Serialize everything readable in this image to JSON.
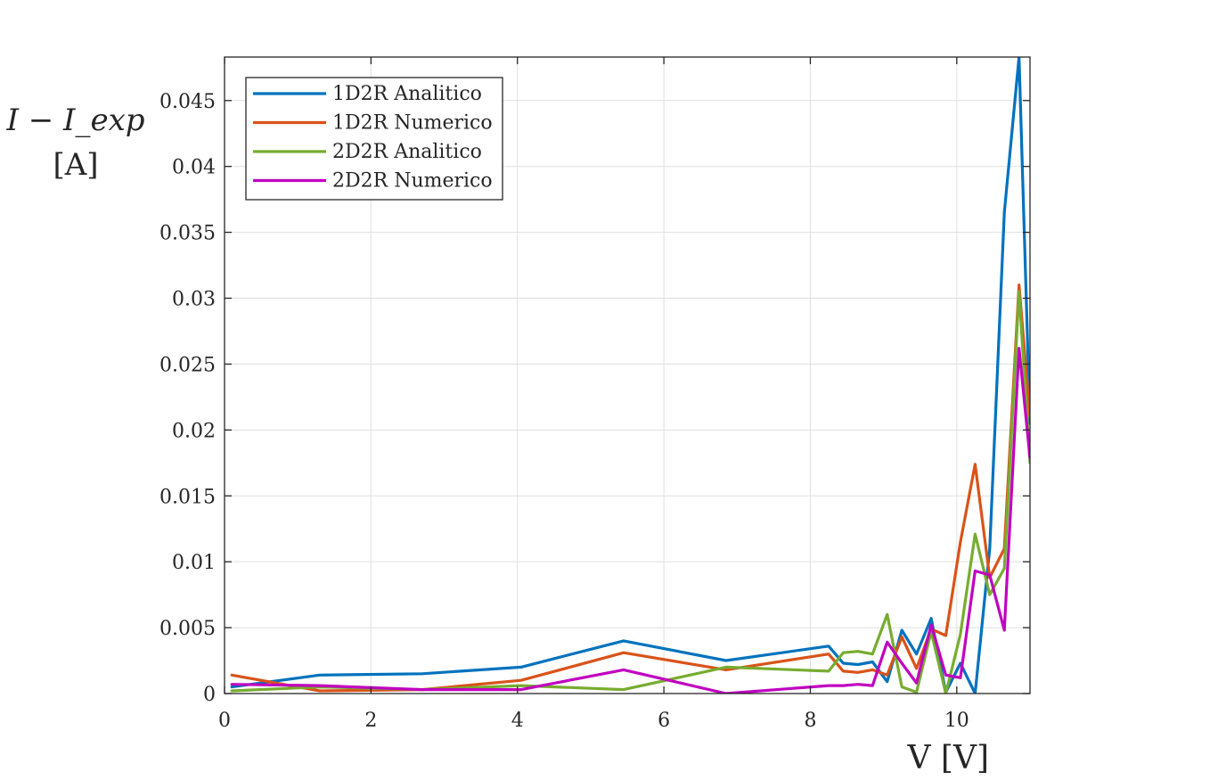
{
  "chart_data": {
    "type": "line",
    "title": "",
    "xlabel": "V [V]",
    "ylabel_line1": "I − I_exp",
    "ylabel_line2": "[A]",
    "xlim": [
      0,
      11
    ],
    "ylim": [
      0,
      0.0483
    ],
    "xticks": [
      0,
      2,
      4,
      6,
      8,
      10
    ],
    "xtick_labels": [
      "0",
      "2",
      "4",
      "6",
      "8",
      "10"
    ],
    "yticks": [
      0,
      0.005,
      0.01,
      0.015,
      0.02,
      0.025,
      0.03,
      0.035,
      0.04,
      0.045
    ],
    "ytick_labels": [
      "0",
      "0.005",
      "0.01",
      "0.015",
      "0.02",
      "0.025",
      "0.03",
      "0.035",
      "0.04",
      "0.045"
    ],
    "grid": true,
    "legend_position": "top-left",
    "x": [
      0.1,
      1.3,
      2.7,
      4.05,
      5.45,
      6.85,
      8.25,
      8.45,
      8.65,
      8.85,
      9.05,
      9.25,
      9.45,
      9.65,
      9.85,
      10.05,
      10.25,
      10.45,
      10.65,
      10.85,
      11.0
    ],
    "series": [
      {
        "name": "1D2R Analitico",
        "color": "#0072BD",
        "values": [
          0.0005,
          0.0014,
          0.0015,
          0.002,
          0.004,
          0.0025,
          0.0036,
          0.0023,
          0.0022,
          0.0024,
          0.0009,
          0.0048,
          0.003,
          0.0057,
          0.0001,
          0.0023,
          0.0,
          0.011,
          0.0365,
          0.0483,
          0.0205
        ]
      },
      {
        "name": "1D2R Numerico",
        "color": "#D95319",
        "values": [
          0.0014,
          0.0002,
          0.0003,
          0.001,
          0.0031,
          0.0018,
          0.003,
          0.0017,
          0.0016,
          0.0018,
          0.0014,
          0.0043,
          0.0019,
          0.0049,
          0.0044,
          0.0115,
          0.0174,
          0.0088,
          0.011,
          0.031,
          0.021
        ]
      },
      {
        "name": "2D2R Analitico",
        "color": "#77AC30",
        "values": [
          0.0002,
          0.0005,
          0.0003,
          0.0006,
          0.0003,
          0.002,
          0.0017,
          0.0031,
          0.0032,
          0.003,
          0.006,
          0.0005,
          0.0001,
          0.0047,
          0.0,
          0.0045,
          0.0121,
          0.0075,
          0.0095,
          0.0305,
          0.0175
        ]
      },
      {
        "name": "2D2R Numerico",
        "color": "#C000C0",
        "values": [
          0.0007,
          0.0006,
          0.0003,
          0.0003,
          0.0018,
          0.0,
          0.0006,
          0.0006,
          0.0007,
          0.0006,
          0.0039,
          0.0023,
          0.0008,
          0.0052,
          0.0014,
          0.0012,
          0.0093,
          0.009,
          0.0048,
          0.0262,
          0.0179
        ]
      }
    ]
  }
}
